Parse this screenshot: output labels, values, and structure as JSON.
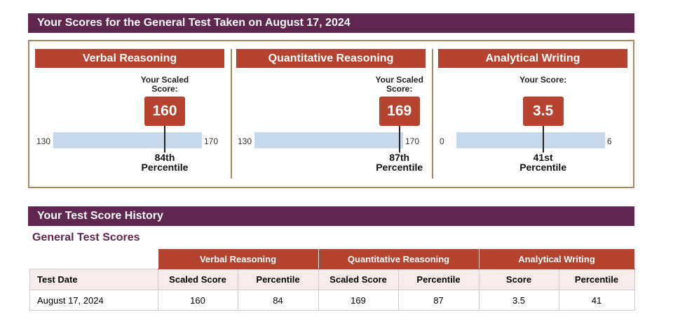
{
  "title": "Your Scores for the General Test Taken on August 17, 2024",
  "sections": [
    {
      "name": "Verbal Reasoning",
      "label": "Your Scaled Score:",
      "score": 160,
      "min": 130,
      "max": 170,
      "percentile": "84th",
      "percentile_label": "Percentile"
    },
    {
      "name": "Quantitative Reasoning",
      "label": "Your Scaled Score:",
      "score": 169,
      "min": 130,
      "max": 170,
      "percentile": "87th",
      "percentile_label": "Percentile"
    },
    {
      "name": "Analytical Writing",
      "label": "Your Score:",
      "score": 3.5,
      "min": 0,
      "max": 6,
      "percentile": "41st",
      "percentile_label": "Percentile"
    }
  ],
  "history": {
    "title": "Your Test Score History",
    "subtitle": "General Test Scores",
    "groups": [
      "Verbal Reasoning",
      "Quantitative Reasoning",
      "Analytical Writing"
    ],
    "columns": [
      "Test Date",
      "Scaled Score",
      "Percentile",
      "Scaled Score",
      "Percentile",
      "Score",
      "Percentile"
    ],
    "rows": [
      [
        "August 17, 2024",
        "160",
        "84",
        "169",
        "87",
        "3.5",
        "41"
      ]
    ]
  },
  "colors": {
    "purple": "#5f2650",
    "red": "#b6432f",
    "track": "#c7d8ea"
  }
}
